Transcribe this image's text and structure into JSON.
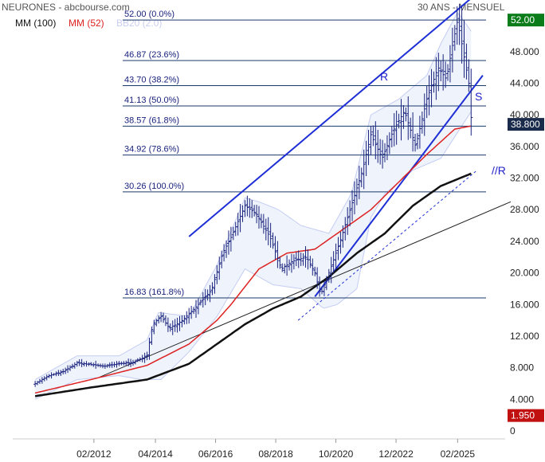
{
  "header": {
    "title": "NEURONES - abcbourse.com",
    "period": "30 ANS - MENSUEL"
  },
  "legend": [
    {
      "label": "MM (100)",
      "color": "#111111"
    },
    {
      "label": "MM (52)",
      "color": "#dd2222"
    },
    {
      "label": "BB20 (2.0)",
      "color": "#aab4ee"
    }
  ],
  "colors": {
    "price": "#1a237e",
    "mm100": "#111111",
    "mm52": "#dd2222",
    "bollinger": "#c5cdf3",
    "bollinger_fill": "#eef3fc",
    "fib": "#1a3a6a",
    "channel": "#1f2fd6",
    "last_badge": "#0a7d1a",
    "min_badge": "#c01010",
    "price_badge": "#1a2a4a"
  },
  "badges": {
    "last": "52.00",
    "current": "38.800",
    "bottom": "1.950"
  },
  "annotations": {
    "resistance": "R",
    "support": "S",
    "parallel": "//R"
  },
  "chart_data": {
    "type": "candlestick",
    "title": "NEURONES - abcbourse.com",
    "xlabel": "",
    "ylabel": "",
    "x_ticks": [
      "02/2012",
      "04/2014",
      "06/2016",
      "08/2018",
      "10/2020",
      "12/2022",
      "02/2025"
    ],
    "y_ticks": [
      0,
      4,
      8,
      12,
      16,
      20,
      24,
      28,
      32,
      36,
      40,
      44,
      48
    ],
    "ylim": [
      0,
      52
    ],
    "grid": false,
    "fibonacci": [
      {
        "label": "52.00 (0.0%)",
        "value": 52.0
      },
      {
        "label": "46.87 (23.6%)",
        "value": 46.87
      },
      {
        "label": "43.70 (38.2%)",
        "value": 43.7
      },
      {
        "label": "41.13 (50.0%)",
        "value": 41.13
      },
      {
        "label": "38.57 (61.8%)",
        "value": 38.57
      },
      {
        "label": "34.92 (78.6%)",
        "value": 34.92
      },
      {
        "label": "30.26 (100.0%)",
        "value": 30.26
      },
      {
        "label": "16.83 (161.8%)",
        "value": 16.83
      }
    ],
    "price_anchors": [
      [
        2010.0,
        6.0
      ],
      [
        2010.5,
        7.0
      ],
      [
        2011.0,
        7.5
      ],
      [
        2011.5,
        8.6
      ],
      [
        2012.0,
        8.4
      ],
      [
        2012.5,
        8.2
      ],
      [
        2013.0,
        8.5
      ],
      [
        2013.5,
        8.7
      ],
      [
        2014.0,
        9.5
      ],
      [
        2014.2,
        13.5
      ],
      [
        2014.5,
        14.5
      ],
      [
        2014.8,
        13.0
      ],
      [
        2015.2,
        13.8
      ],
      [
        2015.7,
        15.5
      ],
      [
        2016.3,
        17.8
      ],
      [
        2016.7,
        22.5
      ],
      [
        2017.0,
        24.5
      ],
      [
        2017.5,
        28.5
      ],
      [
        2017.9,
        27.5
      ],
      [
        2018.4,
        24.5
      ],
      [
        2018.8,
        20.5
      ],
      [
        2019.2,
        21.5
      ],
      [
        2019.7,
        22.0
      ],
      [
        2020.0,
        20.0
      ],
      [
        2020.2,
        17.2
      ],
      [
        2020.6,
        21.0
      ],
      [
        2020.9,
        24.0
      ],
      [
        2021.3,
        28.5
      ],
      [
        2021.7,
        33.0
      ],
      [
        2022.0,
        37.5
      ],
      [
        2022.4,
        34.5
      ],
      [
        2022.8,
        38.0
      ],
      [
        2023.2,
        40.5
      ],
      [
        2023.6,
        36.0
      ],
      [
        2024.0,
        42.0
      ],
      [
        2024.4,
        46.0
      ],
      [
        2024.7,
        44.5
      ],
      [
        2024.9,
        48.5
      ],
      [
        2025.1,
        52.0
      ],
      [
        2025.3,
        48.0
      ],
      [
        2025.5,
        44.0
      ],
      [
        2025.6,
        38.8
      ]
    ],
    "mm52": [
      [
        2010.0,
        4.8
      ],
      [
        2012.0,
        6.5
      ],
      [
        2014.0,
        8.3
      ],
      [
        2015.5,
        11.0
      ],
      [
        2016.5,
        14.0
      ],
      [
        2017.0,
        16.0
      ],
      [
        2018.0,
        20.5
      ],
      [
        2019.0,
        22.5
      ],
      [
        2020.0,
        23.0
      ],
      [
        2021.0,
        25.5
      ],
      [
        2022.0,
        28.0
      ],
      [
        2023.0,
        31.5
      ],
      [
        2024.0,
        35.0
      ],
      [
        2025.0,
        38.2
      ],
      [
        2025.6,
        38.6
      ]
    ],
    "mm100": [
      [
        2010.0,
        4.4
      ],
      [
        2012.0,
        5.5
      ],
      [
        2014.0,
        6.5
      ],
      [
        2015.5,
        8.5
      ],
      [
        2016.5,
        11.0
      ],
      [
        2017.5,
        13.5
      ],
      [
        2018.5,
        15.5
      ],
      [
        2019.5,
        17.0
      ],
      [
        2020.5,
        19.5
      ],
      [
        2021.5,
        22.5
      ],
      [
        2022.5,
        25.0
      ],
      [
        2023.5,
        28.5
      ],
      [
        2024.5,
        31.0
      ],
      [
        2025.6,
        32.6
      ]
    ],
    "bb_upper": [
      [
        2010.0,
        6.5
      ],
      [
        2011.5,
        9.5
      ],
      [
        2013.0,
        9.5
      ],
      [
        2014.0,
        11.5
      ],
      [
        2014.4,
        15.0
      ],
      [
        2015.5,
        14.5
      ],
      [
        2016.5,
        21.0
      ],
      [
        2017.5,
        29.5
      ],
      [
        2018.0,
        29.0
      ],
      [
        2018.7,
        28.0
      ],
      [
        2019.5,
        26.0
      ],
      [
        2020.5,
        25.0
      ],
      [
        2021.3,
        30.0
      ],
      [
        2022.0,
        40.0
      ],
      [
        2023.0,
        42.0
      ],
      [
        2024.0,
        45.0
      ],
      [
        2024.5,
        49.0
      ],
      [
        2025.1,
        53.0
      ],
      [
        2025.6,
        50.5
      ]
    ],
    "bb_lower": [
      [
        2010.0,
        4.0
      ],
      [
        2011.5,
        6.5
      ],
      [
        2013.0,
        7.0
      ],
      [
        2013.8,
        6.5
      ],
      [
        2014.5,
        6.5
      ],
      [
        2015.5,
        10.0
      ],
      [
        2016.5,
        14.5
      ],
      [
        2017.5,
        20.5
      ],
      [
        2018.5,
        18.5
      ],
      [
        2019.5,
        18.0
      ],
      [
        2020.3,
        15.5
      ],
      [
        2020.8,
        16.0
      ],
      [
        2021.5,
        18.0
      ],
      [
        2022.0,
        27.0
      ],
      [
        2022.5,
        30.0
      ],
      [
        2023.5,
        33.0
      ],
      [
        2024.5,
        34.5
      ],
      [
        2025.6,
        40.5
      ]
    ],
    "trendlines": [
      {
        "name": "R",
        "points": [
          [
            2015.5,
            24.6
          ],
          [
            2026.0,
            56.0
          ]
        ]
      },
      {
        "name": "S",
        "points": [
          [
            2020.0,
            17.0
          ],
          [
            2026.0,
            45.0
          ]
        ]
      },
      {
        "name": "//R",
        "points": [
          [
            2019.4,
            14.0
          ],
          [
            2025.8,
            33.0
          ]
        ]
      },
      {
        "name": "long-term",
        "points": [
          [
            2012.3,
            6.8
          ],
          [
            2027.0,
            29.0
          ]
        ]
      }
    ]
  }
}
